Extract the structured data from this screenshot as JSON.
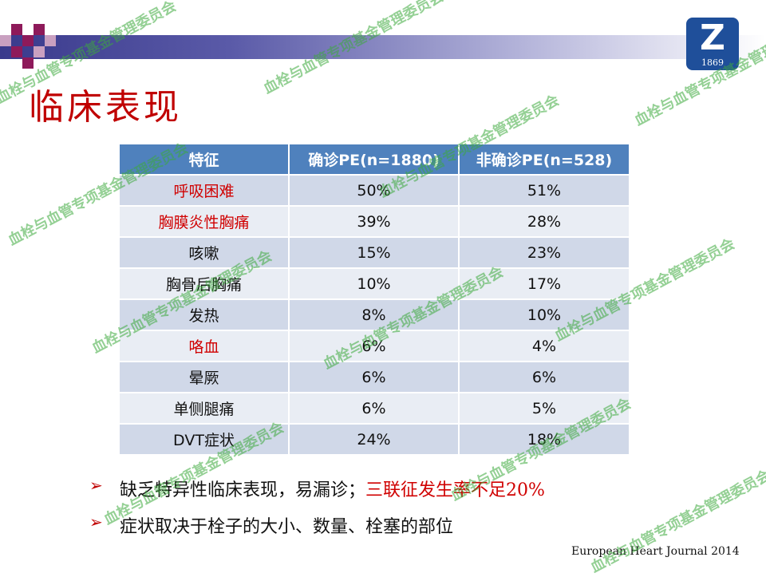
{
  "slide": {
    "title": "临床表现",
    "logo_text": "Z",
    "logo_year": "1869",
    "watermark": "血栓与血管专项基金管理委员会"
  },
  "table": {
    "headers": [
      "特征",
      "确诊PE(n=1880)",
      "非确诊PE(n=528)"
    ],
    "rows": [
      {
        "feature": "呼吸困难",
        "confirmed": "50%",
        "unconfirmed": "51%",
        "highlight": true
      },
      {
        "feature": "胸膜炎性胸痛",
        "confirmed": "39%",
        "unconfirmed": "28%",
        "highlight": true
      },
      {
        "feature": "咳嗽",
        "confirmed": "15%",
        "unconfirmed": "23%",
        "highlight": false
      },
      {
        "feature": "胸骨后胸痛",
        "confirmed": "10%",
        "unconfirmed": "17%",
        "highlight": false
      },
      {
        "feature": "发热",
        "confirmed": "8%",
        "unconfirmed": "10%",
        "highlight": false
      },
      {
        "feature": "咯血",
        "confirmed": "6%",
        "unconfirmed": "4%",
        "highlight": true
      },
      {
        "feature": "晕厥",
        "confirmed": "6%",
        "unconfirmed": "6%",
        "highlight": false
      },
      {
        "feature": "单侧腿痛",
        "confirmed": "6%",
        "unconfirmed": "5%",
        "highlight": false
      },
      {
        "feature": "DVT症状",
        "confirmed": "24%",
        "unconfirmed": "18%",
        "highlight": false
      }
    ]
  },
  "bullets": [
    {
      "text": "缺乏特异性临床表现，易漏诊；",
      "highlight": "三联征发生率不足20%"
    },
    {
      "text": "症状取决于栓子的大小、数量、栓塞的部位",
      "highlight": ""
    }
  ],
  "citation": "European Heart Journal 2014",
  "colors": {
    "title": "#c00000",
    "table_header": "#4f81bd",
    "row_dark": "#d0d8e8",
    "row_light": "#e9edf4",
    "highlight_text": "#d00000",
    "watermark": "#3caa3c"
  }
}
